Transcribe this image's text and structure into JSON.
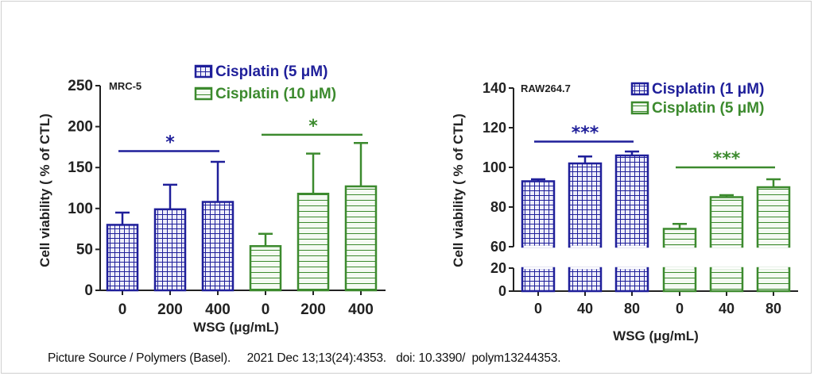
{
  "colors": {
    "series1": "#1f1f9a",
    "series2": "#3c8a2e",
    "axis": "#222222",
    "background": "#ffffff"
  },
  "caption": "Picture Source / Polymers (Basel).     2021 Dec 13;13(24):4353.   doi: 10.3390/  polym13244353.",
  "chart_data": [
    {
      "type": "bar",
      "panel_label": "MRC-5",
      "title": "",
      "xlabel": "WSG (μg/mL)",
      "ylabel": "Cell viability ( % of CTL)",
      "ylim": [
        0,
        250
      ],
      "yticks": [
        0,
        50,
        100,
        150,
        200,
        250
      ],
      "grid": false,
      "legend_position": "top-right",
      "groups": [
        {
          "name": "Cisplatin (5 μM)",
          "pattern": "grid",
          "categories": [
            "0",
            "200",
            "400"
          ],
          "values": [
            80,
            99,
            108
          ],
          "errors": [
            15,
            30,
            49
          ],
          "significance": "*"
        },
        {
          "name": "Cisplatin (10 μM)",
          "pattern": "horizontal-lines",
          "categories": [
            "0",
            "200",
            "400"
          ],
          "values": [
            54,
            118,
            127
          ],
          "errors": [
            15,
            49,
            53
          ],
          "significance": "*"
        }
      ],
      "significance_bar_y": [
        170,
        190
      ]
    },
    {
      "type": "bar",
      "panel_label": "RAW264.7",
      "title": "",
      "xlabel": "WSG (μg/mL)",
      "ylabel": "Cell viability ( % of CTL)",
      "ylim": [
        0,
        140
      ],
      "axis_break": [
        20,
        60
      ],
      "yticks": [
        0,
        20,
        60,
        80,
        100,
        120,
        140
      ],
      "grid": false,
      "legend_position": "top-right",
      "groups": [
        {
          "name": "Cisplatin (1 μM)",
          "pattern": "grid",
          "categories": [
            "0",
            "40",
            "80"
          ],
          "values": [
            93,
            102,
            106
          ],
          "errors": [
            1,
            3.5,
            2
          ],
          "significance": "***"
        },
        {
          "name": "Cisplatin (5 μM)",
          "pattern": "horizontal-lines",
          "categories": [
            "0",
            "40",
            "80"
          ],
          "values": [
            69,
            85,
            90
          ],
          "errors": [
            2.5,
            1,
            4
          ],
          "significance": "***"
        }
      ],
      "significance_bar_y": [
        113,
        100
      ]
    }
  ]
}
